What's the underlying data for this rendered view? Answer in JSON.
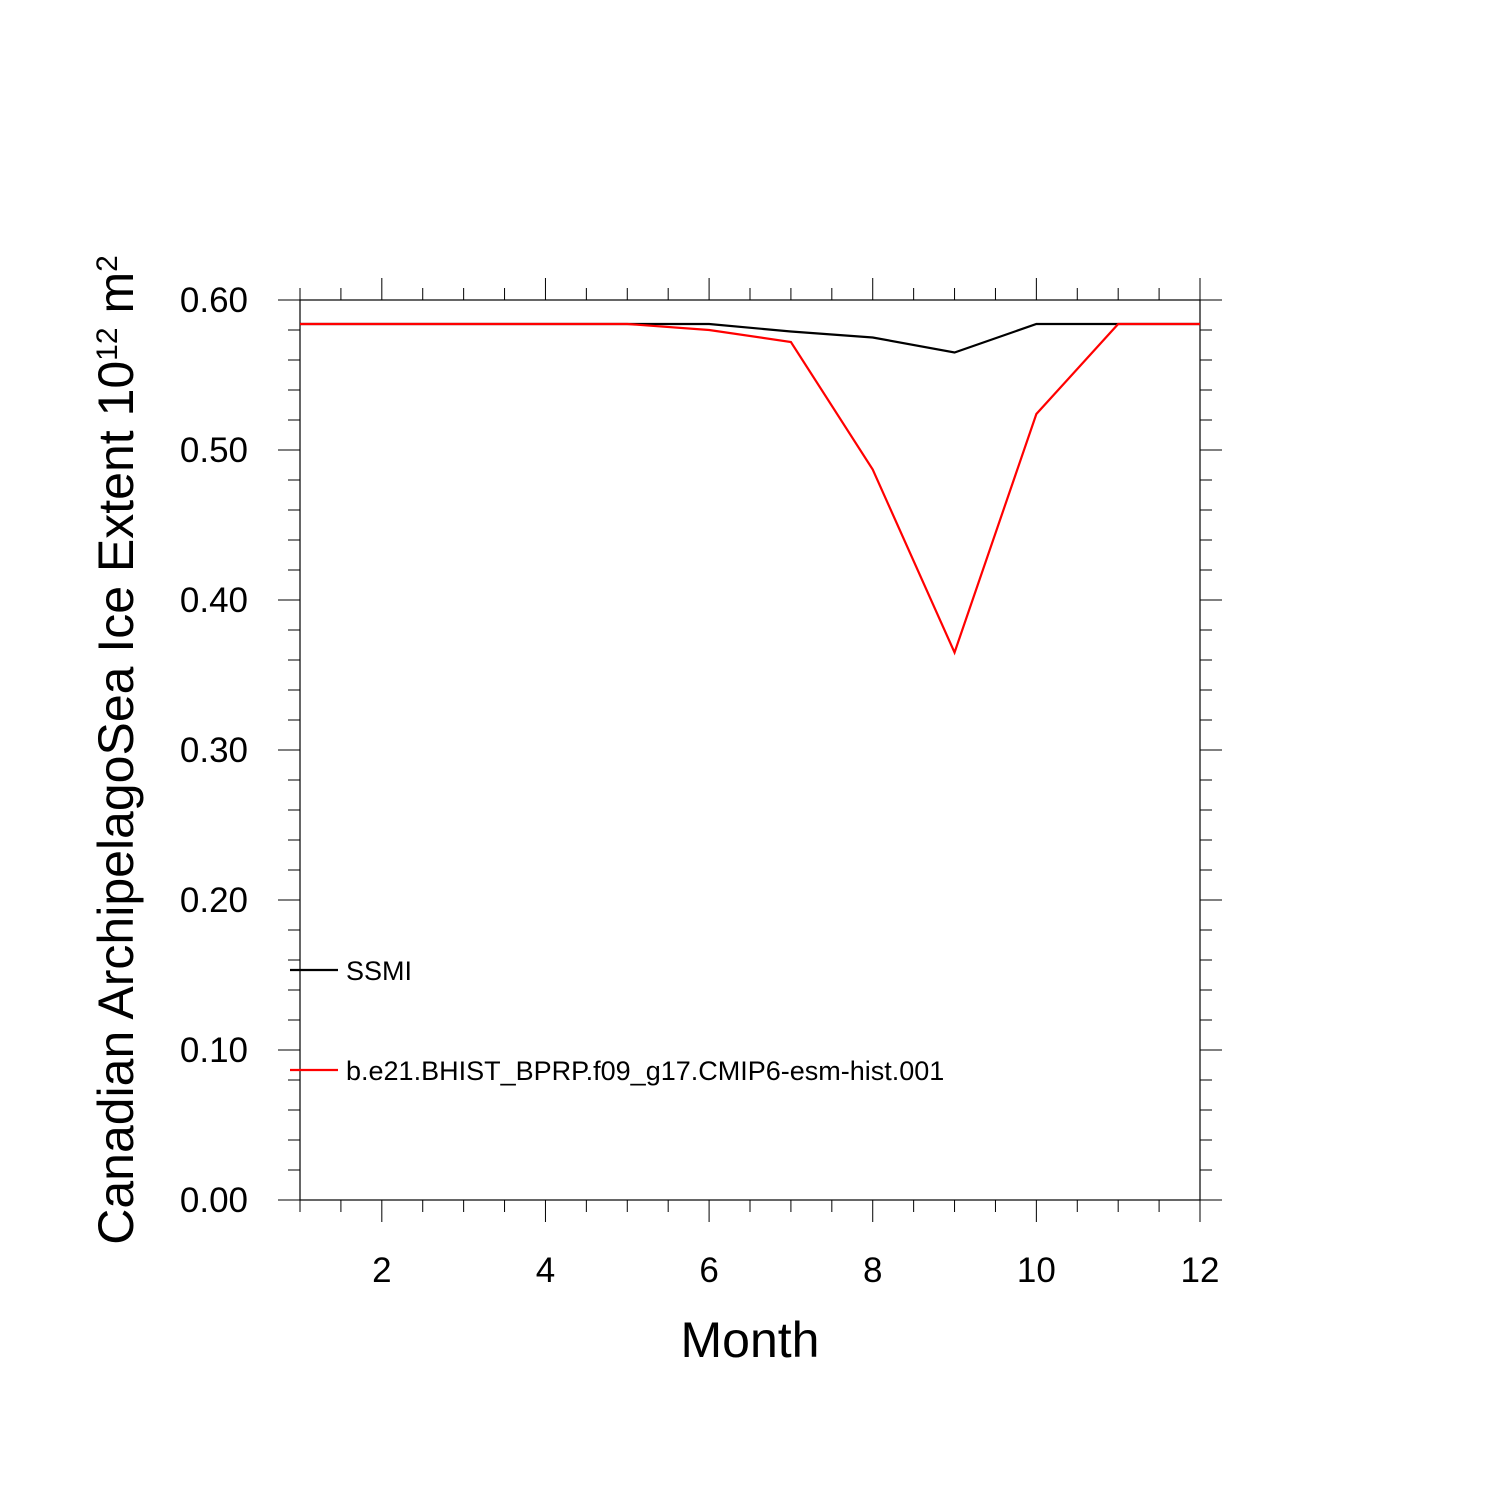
{
  "chart_data": {
    "type": "line",
    "title": "",
    "xlabel": "Month",
    "ylabel": {
      "prefix": "Canadian ArchipelagoSea Ice Extent 10",
      "exponent": "12",
      "unit": " m",
      "unit_exponent": "2"
    },
    "xlim": [
      1,
      12
    ],
    "ylim": [
      0.0,
      0.6
    ],
    "x_ticks": [
      2,
      4,
      6,
      8,
      10,
      12
    ],
    "x_tick_labels": [
      "2",
      "4",
      "6",
      "8",
      "10",
      "12"
    ],
    "y_ticks": [
      0.0,
      0.1,
      0.2,
      0.3,
      0.4,
      0.5,
      0.6
    ],
    "y_tick_labels": [
      "0.00",
      "0.10",
      "0.20",
      "0.30",
      "0.40",
      "0.50",
      "0.60"
    ],
    "x_minor_step": 0.5,
    "y_minor_step": 0.02,
    "grid": false,
    "legend_position": "bottom-left",
    "x": [
      1,
      2,
      3,
      4,
      5,
      6,
      7,
      8,
      9,
      10,
      11,
      12
    ],
    "series": [
      {
        "name": "SSMI",
        "color": "#000000",
        "values": [
          0.584,
          0.584,
          0.584,
          0.584,
          0.584,
          0.584,
          0.579,
          0.575,
          0.565,
          0.584,
          0.584,
          0.584
        ]
      },
      {
        "name": "b.e21.BHIST_BPRP.f09_g17.CMIP6-esm-hist.001",
        "color": "#ff0000",
        "values": [
          0.584,
          0.584,
          0.584,
          0.584,
          0.584,
          0.58,
          0.572,
          0.487,
          0.365,
          0.524,
          0.584,
          0.584
        ]
      }
    ]
  }
}
